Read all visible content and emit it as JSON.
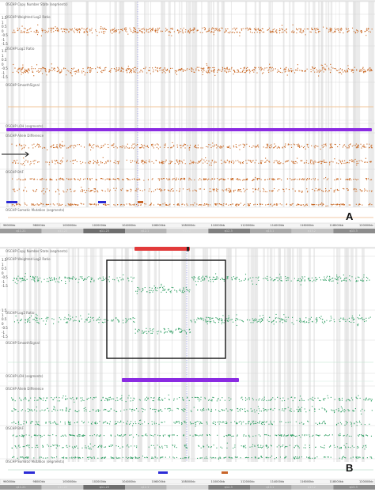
{
  "panels": [
    {
      "id": "A",
      "letter": "A",
      "color": "#c8641e",
      "bar_color": "#8a2be2",
      "tracks": [
        {
          "label": "OSCHP Copy Number State (segments)"
        },
        {
          "label": "OSCHP Weighted Log2 Ratio"
        },
        {
          "label": "OSCHP Log2 Ratio"
        },
        {
          "label": "OSCHP SmoothSignal"
        },
        {
          "label": "OSCHP LOH (segments)"
        },
        {
          "label": "OSCHP Allele Difference"
        },
        {
          "label": "OSCHP BAF"
        },
        {
          "label": "OSCHP Somatic Mutation (segments)"
        }
      ],
      "y_ticks": [
        "1.5",
        "1",
        "0.5",
        "0",
        "-0.5",
        "-1",
        "-1.5"
      ],
      "axis_labels": [
        "96000kb",
        "98000kb",
        "100000kb",
        "102000kb",
        "104000kb",
        "106000kb",
        "108000kb",
        "110000kb",
        "112000kb",
        "114000kb",
        "116000kb",
        "118000kb",
        "120000kb"
      ],
      "bands": [
        "q11.21",
        "q11.22",
        "q11.23",
        "q12.1",
        "q12.2",
        "q12.3",
        "q13.1",
        "q13.2",
        "q13.3"
      ]
    },
    {
      "id": "B",
      "letter": "B",
      "color": "#2e9e62",
      "bar_color": "#8a2be2",
      "red_bar_color": "#e23a3a",
      "tracks": [
        {
          "label": "OSCHP Copy Number State (segments)"
        },
        {
          "label": "OSCHP Weighted Log2 Ratio"
        },
        {
          "label": "OSCHP Log2 Ratio"
        },
        {
          "label": "OSCHP SmoothSignal"
        },
        {
          "label": "OSCHP LOH (segments)"
        },
        {
          "label": "OSCHP Allele Difference"
        },
        {
          "label": "OSCHP BAF"
        },
        {
          "label": "OSCHP Somatic Mutation (segments)"
        }
      ],
      "y_ticks": [
        "1.5",
        "1",
        "0.5",
        "0",
        "-0.5",
        "-1",
        "-1.5"
      ],
      "axis_labels": [
        "96000kb",
        "98000kb",
        "100000kb",
        "102000kb",
        "104000kb",
        "106000kb",
        "108000kb",
        "110000kb",
        "112000kb",
        "114000kb",
        "116000kb",
        "118000kb",
        "120000kb"
      ],
      "bands": [
        "q11.21",
        "q11.22",
        "q11.23",
        "q12.1",
        "q12.2",
        "q12.3",
        "q13.1",
        "q13.2",
        "q13.3"
      ]
    }
  ]
}
